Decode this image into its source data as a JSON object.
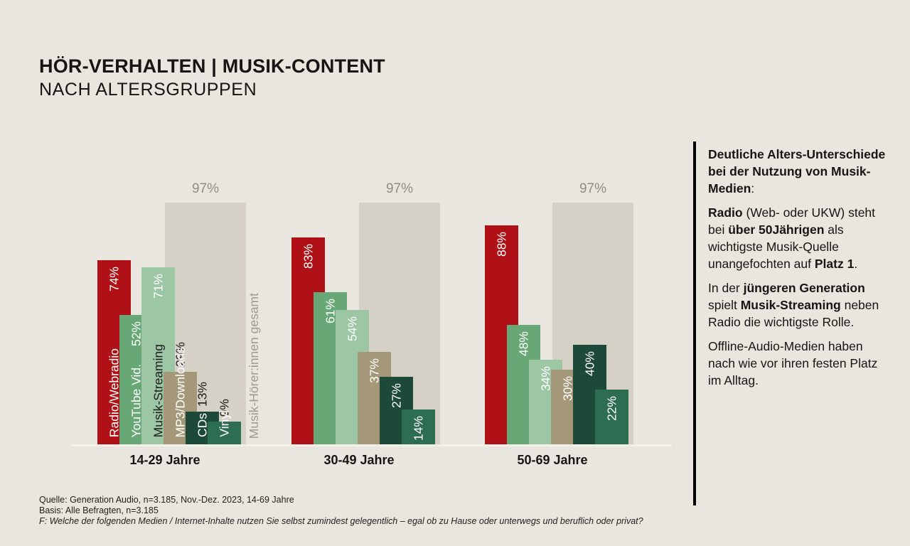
{
  "page": {
    "background": "#e9e6df"
  },
  "title": {
    "line1": "HÖR-VERHALTEN | MUSIK-CONTENT",
    "line2": "NACH ALTERSGRUPPEN"
  },
  "chart_data": {
    "type": "bar",
    "unit": "%",
    "ylim": [
      0,
      100
    ],
    "grid": "off",
    "legend": "none",
    "categories": [
      "Radio/Webradio",
      "YouTube Vid.",
      "Musik-Streaming",
      "MP3/Downloads",
      "CDs",
      "Vinyl",
      "Musik-Hörer:innen gesamt"
    ],
    "category_colors": [
      "#b01116",
      "#68a877",
      "#9cc6a4",
      "#a59878",
      "#1d4a38",
      "#2d6e52",
      "#d6d1c7"
    ],
    "category_label_colors": [
      "#ffffff",
      "#ffffff",
      "#1e1e1c",
      "#ffffff",
      "#ffffff",
      "#ffffff",
      "#a19a8c"
    ],
    "inside_value_color": "#ffffff",
    "outside_value_color": "#1d1d1b",
    "total_value_color": "#958c7d",
    "show_category_labels_on_group": 0,
    "value_suffix": "%",
    "groups": [
      {
        "label": "14-29 Jahre",
        "values": [
          74,
          52,
          71,
          29,
          13,
          9,
          97
        ],
        "value_label_outside": [
          false,
          false,
          false,
          true,
          true,
          true,
          false
        ]
      },
      {
        "label": "30-49 Jahre",
        "values": [
          83,
          61,
          54,
          37,
          27,
          14,
          97
        ],
        "value_label_outside": [
          false,
          false,
          false,
          false,
          false,
          false,
          false
        ]
      },
      {
        "label": "50-69 Jahre",
        "values": [
          88,
          48,
          34,
          30,
          40,
          22,
          97
        ],
        "value_label_outside": [
          false,
          false,
          false,
          false,
          false,
          false,
          false
        ]
      }
    ]
  },
  "sidebar": {
    "paragraphs": [
      {
        "segments": [
          {
            "text": "Deutliche Alters-Unterschiede bei der Nutzung von Musik-Medien",
            "bold": true
          },
          {
            "text": ":",
            "bold": false
          }
        ]
      },
      {
        "segments": [
          {
            "text": "Radio",
            "bold": true
          },
          {
            "text": " (Web- oder UKW) steht bei ",
            "bold": false
          },
          {
            "text": "über 50Jährigen",
            "bold": true
          },
          {
            "text": " als wichtigste Musik-Quelle unangefochten auf ",
            "bold": false
          },
          {
            "text": "Platz 1",
            "bold": true
          },
          {
            "text": ".",
            "bold": false
          }
        ]
      },
      {
        "segments": [
          {
            "text": "In der ",
            "bold": false
          },
          {
            "text": "jüngeren Generation",
            "bold": true
          },
          {
            "text": " spielt ",
            "bold": false
          },
          {
            "text": "Musik-Streaming",
            "bold": true
          },
          {
            "text": " neben Radio die wichtigste Rolle.",
            "bold": false
          }
        ]
      },
      {
        "segments": [
          {
            "text": "Offline-Audio-Medien haben nach wie vor ihren festen Platz im Alltag.",
            "bold": false
          }
        ]
      }
    ]
  },
  "footer": {
    "line1": "Quelle: Generation Audio, n=3.185, Nov.-Dez. 2023, 14-69 Jahre",
    "line2": "Basis: Alle Befragten, n=3.185",
    "line3": "F: Welche der folgenden Medien / Internet-Inhalte nutzen Sie selbst zumindest gelegentlich – egal ob zu Hause oder unterwegs und beruflich oder privat?"
  }
}
